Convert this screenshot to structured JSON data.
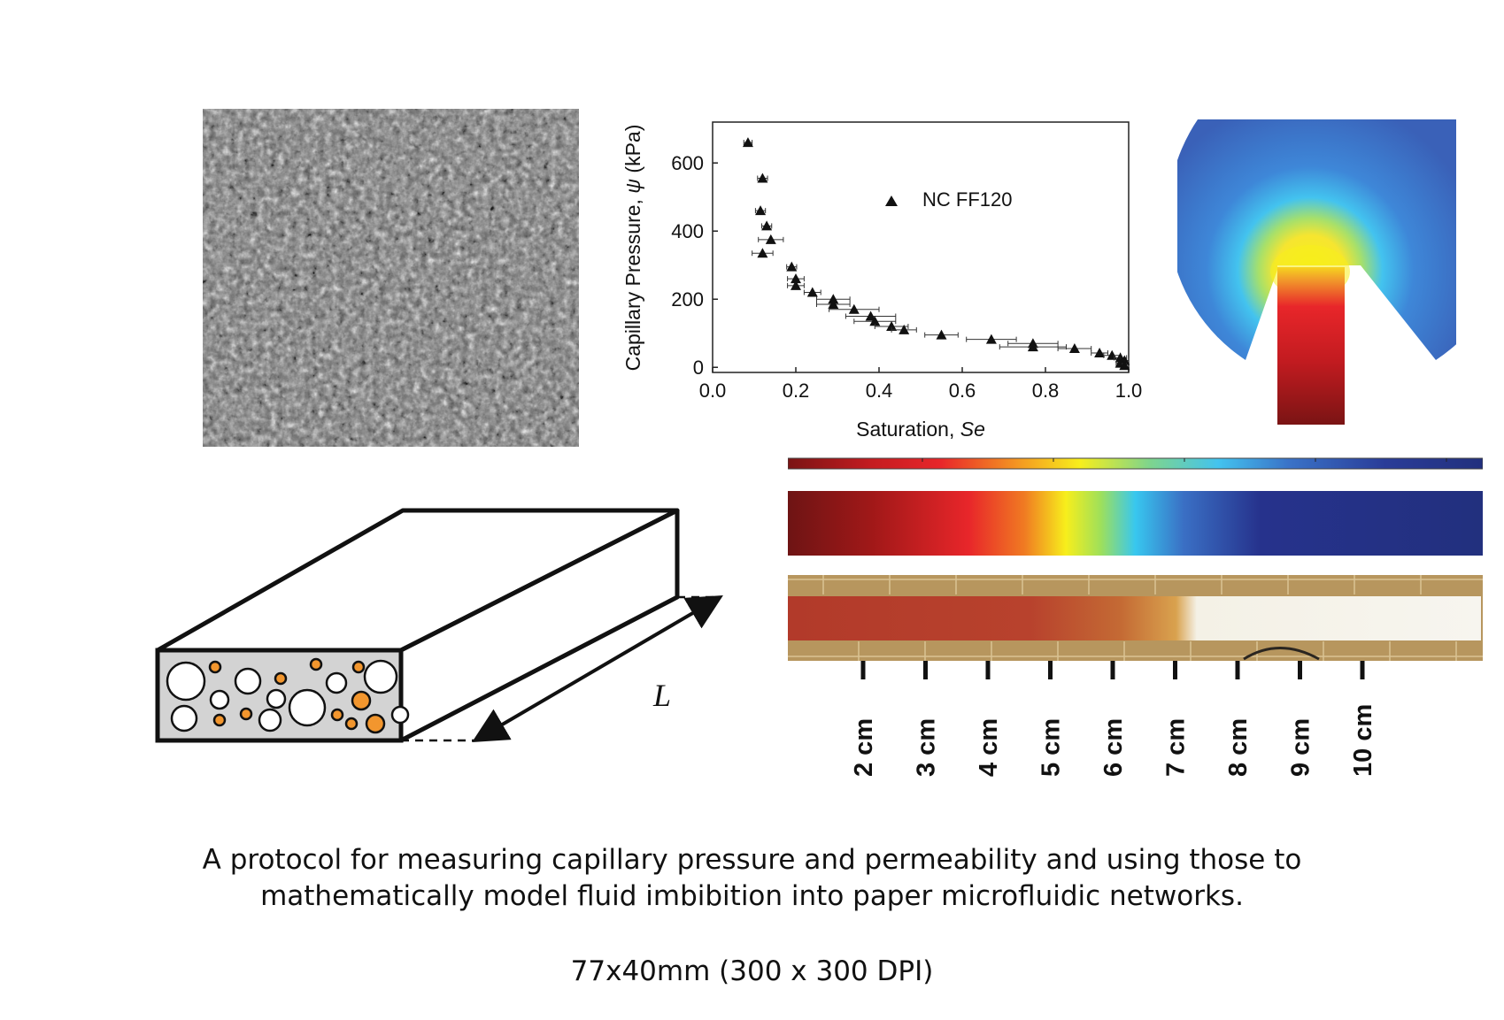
{
  "figure": {
    "caption_lines": [
      "A protocol for measuring capillary pressure and permeability and using those to",
      "mathematically model fluid imbibition into paper microfluidic networks."
    ],
    "dimensions": "77x40mm (300 x 300 DPI)"
  },
  "chart_data": {
    "type": "scatter",
    "xlabel_prefix": "Saturation, ",
    "xlabel_var": "Se",
    "ylabel_prefix": "Capillary Pressure, ",
    "ylabel_var": "ψ",
    "ylabel_unit": " (kPa)",
    "xlim": [
      0.0,
      1.0
    ],
    "ylim": [
      -15,
      720
    ],
    "xticks": [
      0.0,
      0.2,
      0.4,
      0.6,
      0.8,
      1.0
    ],
    "xtick_labels": [
      "0.0",
      "0.2",
      "0.4",
      "0.6",
      "0.8",
      "1.0"
    ],
    "yticks": [
      0,
      200,
      400,
      600
    ],
    "ytick_labels": [
      "0",
      "200",
      "400",
      "600"
    ],
    "legend_position": "top-right",
    "series": [
      {
        "name": "NC FF120",
        "marker": "triangle",
        "points": [
          {
            "x": 0.085,
            "y": 660,
            "xerr": 0.01
          },
          {
            "x": 0.12,
            "y": 555,
            "xerr": 0.012
          },
          {
            "x": 0.115,
            "y": 460,
            "xerr": 0.012
          },
          {
            "x": 0.13,
            "y": 415,
            "xerr": 0.012
          },
          {
            "x": 0.14,
            "y": 375,
            "xerr": 0.03
          },
          {
            "x": 0.12,
            "y": 335,
            "xerr": 0.025
          },
          {
            "x": 0.19,
            "y": 295,
            "xerr": 0.012
          },
          {
            "x": 0.2,
            "y": 260,
            "xerr": 0.02
          },
          {
            "x": 0.2,
            "y": 240,
            "xerr": 0.02
          },
          {
            "x": 0.24,
            "y": 220,
            "xerr": 0.02
          },
          {
            "x": 0.29,
            "y": 200,
            "xerr": 0.04
          },
          {
            "x": 0.29,
            "y": 185,
            "xerr": 0.04
          },
          {
            "x": 0.34,
            "y": 170,
            "xerr": 0.06
          },
          {
            "x": 0.38,
            "y": 150,
            "xerr": 0.06
          },
          {
            "x": 0.39,
            "y": 135,
            "xerr": 0.05
          },
          {
            "x": 0.43,
            "y": 120,
            "xerr": 0.04
          },
          {
            "x": 0.46,
            "y": 110,
            "xerr": 0.03
          },
          {
            "x": 0.55,
            "y": 95,
            "xerr": 0.04
          },
          {
            "x": 0.67,
            "y": 82,
            "xerr": 0.06
          },
          {
            "x": 0.77,
            "y": 70,
            "xerr": 0.06
          },
          {
            "x": 0.77,
            "y": 60,
            "xerr": 0.08
          },
          {
            "x": 0.87,
            "y": 55,
            "xerr": 0.04
          },
          {
            "x": 0.93,
            "y": 42,
            "xerr": 0.02
          },
          {
            "x": 0.96,
            "y": 35,
            "xerr": 0.02
          },
          {
            "x": 0.98,
            "y": 28,
            "xerr": 0.015
          },
          {
            "x": 0.99,
            "y": 20,
            "xerr": 0.01
          },
          {
            "x": 0.98,
            "y": 12,
            "xerr": 0.01
          },
          {
            "x": 0.99,
            "y": 5,
            "xerr": 0.005
          }
        ]
      }
    ]
  },
  "schematic": {
    "length_label": "L"
  },
  "strip": {
    "ruler_labels": [
      "2 cm",
      "3 cm",
      "4 cm",
      "5 cm",
      "6 cm",
      "7 cm",
      "8 cm",
      "9 cm",
      "10 cm"
    ]
  },
  "colors": {
    "colormap": [
      "#6e1414",
      "#a01818",
      "#e8262a",
      "#f5a021",
      "#f7ee1c",
      "#9fe05a",
      "#38c7ef",
      "#3a6fc4",
      "#26328c",
      "#22307e"
    ],
    "wet_paper": "#b54a32",
    "dry_paper": "#f7f5ef",
    "pore_orange": "#f2962e",
    "pore_fill": "#d3d3d3"
  }
}
